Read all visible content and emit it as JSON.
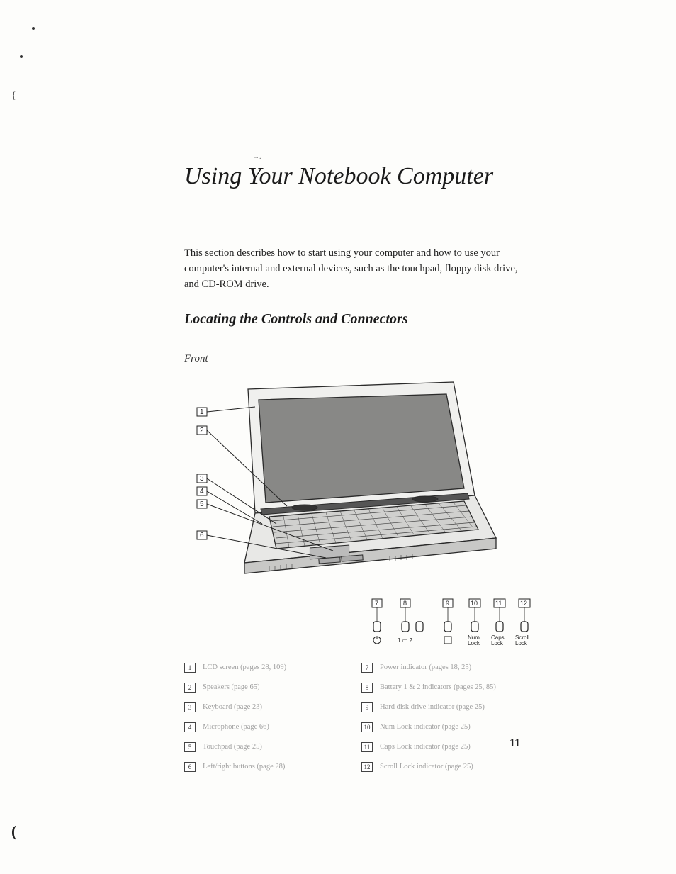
{
  "chapter_title": "Using Your Notebook Computer",
  "intro_text": "This section describes how to start using your computer and how to use your computer's internal and external devices, such as the touchpad, floppy disk drive, and CD-ROM drive.",
  "section_heading": "Locating the Controls and Connectors",
  "view_label": "Front",
  "page_number": "11",
  "diagram": {
    "callouts_left": [
      "1",
      "2",
      "3",
      "4",
      "5",
      "6"
    ],
    "callouts_bottom": [
      "7",
      "8",
      "9",
      "10",
      "11",
      "12"
    ],
    "indicator_labels": {
      "num": "Num Lock",
      "caps": "Caps Lock",
      "scroll": "Scroll Lock",
      "power_symbol": "⏻",
      "battery_symbol": "1▭2",
      "hdd_symbol": "⬚"
    },
    "colors": {
      "stroke": "#2a2a2a",
      "fill_light": "#f0f0ee",
      "fill_mid": "#c8c8c6",
      "fill_dark": "#7a7a78",
      "bg": "#fdfdfb"
    }
  },
  "legend_left": [
    {
      "num": "1",
      "text": "LCD screen (pages 28, 109)"
    },
    {
      "num": "2",
      "text": "Speakers (page 65)"
    },
    {
      "num": "3",
      "text": "Keyboard (page 23)"
    },
    {
      "num": "4",
      "text": "Microphone (page 66)"
    },
    {
      "num": "5",
      "text": "Touchpad (page 25)"
    },
    {
      "num": "6",
      "text": "Left/right buttons (page 28)"
    }
  ],
  "legend_right": [
    {
      "num": "7",
      "text": "Power indicator (pages 18, 25)"
    },
    {
      "num": "8",
      "text": "Battery 1 & 2 indicators (pages 25, 85)"
    },
    {
      "num": "9",
      "text": "Hard disk drive indicator (page 25)"
    },
    {
      "num": "10",
      "text": "Num Lock indicator (page 25)"
    },
    {
      "num": "11",
      "text": "Caps Lock indicator (page 25)"
    },
    {
      "num": "12",
      "text": "Scroll Lock indicator (page 25)"
    }
  ]
}
